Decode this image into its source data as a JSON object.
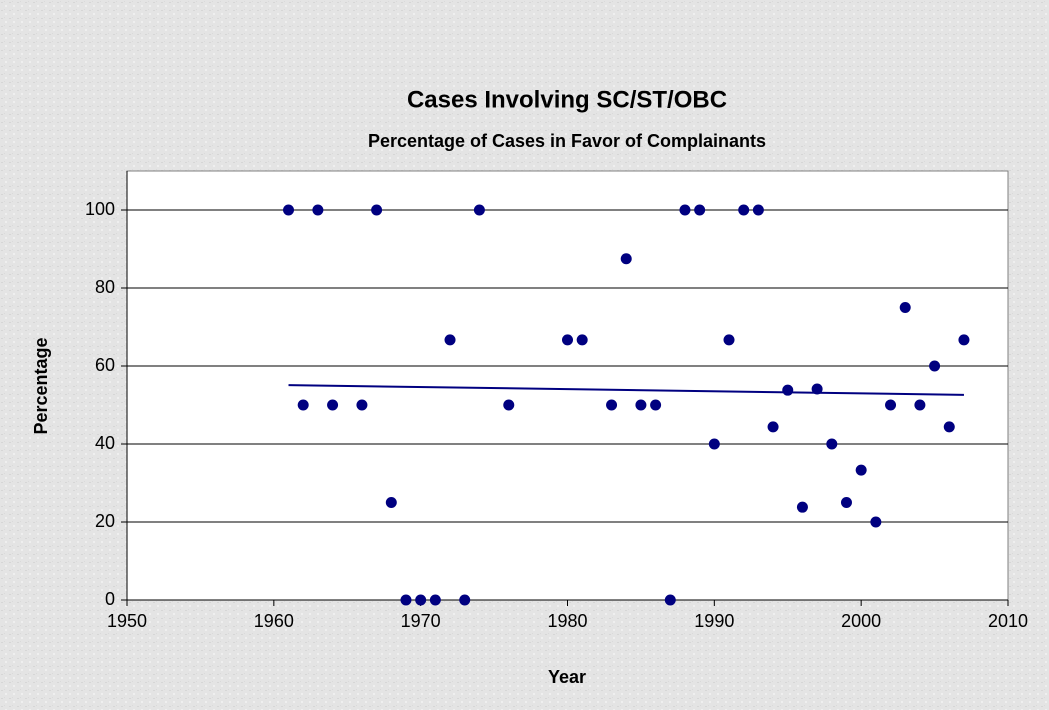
{
  "chart_data": {
    "type": "scatter",
    "title": "Cases Involving SC/ST/OBC",
    "subtitle": "Percentage of Cases in Favor of Complainants",
    "x_label": "Year",
    "y_label": "Percentage",
    "xlim": [
      1950,
      2010
    ],
    "xticks": [
      1950,
      1960,
      1970,
      1980,
      1990,
      2000,
      2010
    ],
    "ylim": [
      0,
      110
    ],
    "yticks": [
      0,
      20,
      40,
      60,
      80,
      100
    ],
    "grid": true,
    "color": "#000080",
    "x": [
      1961,
      1962,
      1963,
      1964,
      1966,
      1967,
      1968,
      1969,
      1970,
      1971,
      1972,
      1973,
      1974,
      1976,
      1980,
      1981,
      1983,
      1984,
      1985,
      1986,
      1987,
      1988,
      1989,
      1990,
      1991,
      1992,
      1993,
      1994,
      1995,
      1996,
      1997,
      1998,
      1999,
      2000,
      2001,
      2002,
      2003,
      2004,
      2005,
      2006,
      2007
    ],
    "values": [
      100,
      50,
      100,
      50,
      50,
      100,
      25,
      0,
      0,
      0,
      66.7,
      0,
      100,
      50,
      66.7,
      66.7,
      50,
      87.5,
      50,
      50,
      0,
      100,
      100,
      40,
      66.7,
      100,
      100,
      44.4,
      53.8,
      23.8,
      54.1,
      40,
      25,
      33.3,
      20,
      50,
      75,
      50,
      60,
      44.4,
      66.7
    ],
    "trendline": {
      "x": [
        1961,
        2007
      ],
      "values": [
        55.1,
        52.6
      ]
    }
  }
}
